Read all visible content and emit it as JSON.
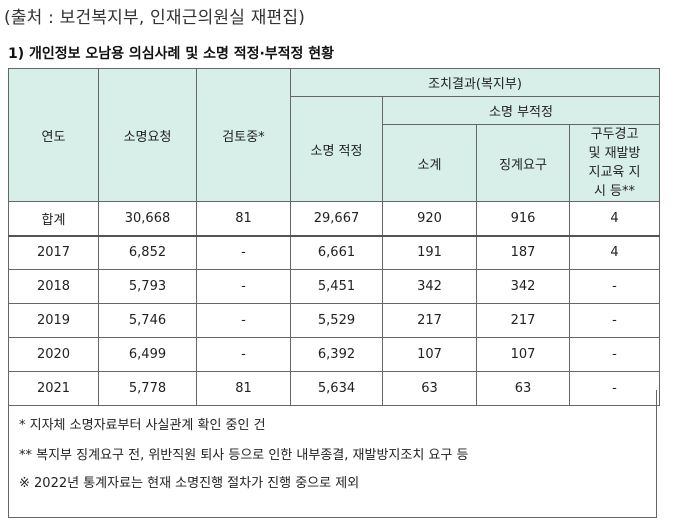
{
  "source": "(출처 : 보건복지부, 인재근의원실 재편집)",
  "heading": "1) 개인정보 오남용 의심사례 및 소명 적정·부적정 현황",
  "table": {
    "headers": {
      "year": "연도",
      "request": "소명요청",
      "review": "검토중*",
      "result_group": "조치결과(복지부)",
      "adequate": "소명 적정",
      "inadequate_group": "소명 부적정",
      "subtotal": "소계",
      "discipline": "징계요구",
      "warning": "구두경고 및 재발방지교육 지시 등**"
    },
    "rows": [
      {
        "year": "합계",
        "request": "30,668",
        "review": "81",
        "adequate": "29,667",
        "subtotal": "920",
        "discipline": "916",
        "warning": "4"
      },
      {
        "year": "2017",
        "request": "6,852",
        "review": "-",
        "adequate": "6,661",
        "subtotal": "191",
        "discipline": "187",
        "warning": "4"
      },
      {
        "year": "2018",
        "request": "5,793",
        "review": "-",
        "adequate": "5,451",
        "subtotal": "342",
        "discipline": "342",
        "warning": "-"
      },
      {
        "year": "2019",
        "request": "5,746",
        "review": "-",
        "adequate": "5,529",
        "subtotal": "217",
        "discipline": "217",
        "warning": "-"
      },
      {
        "year": "2020",
        "request": "6,499",
        "review": "-",
        "adequate": "6,392",
        "subtotal": "107",
        "discipline": "107",
        "warning": "-"
      },
      {
        "year": "2021",
        "request": "5,778",
        "review": "81",
        "adequate": "5,634",
        "subtotal": "63",
        "discipline": "63",
        "warning": "-"
      }
    ]
  },
  "notes": [
    "* 지자체 소명자료부터 사실관계 확인 중인 건",
    "** 복지부 징계요구 전, 위반직원 퇴사 등으로 인한 내부종결, 재발방지조치 요구 등",
    "※ 2022년 통계자료는 현재 소명진행 절차가 진행 중으로 제외"
  ],
  "colors": {
    "header_bg": "#d8efe9",
    "border": "#666666"
  }
}
